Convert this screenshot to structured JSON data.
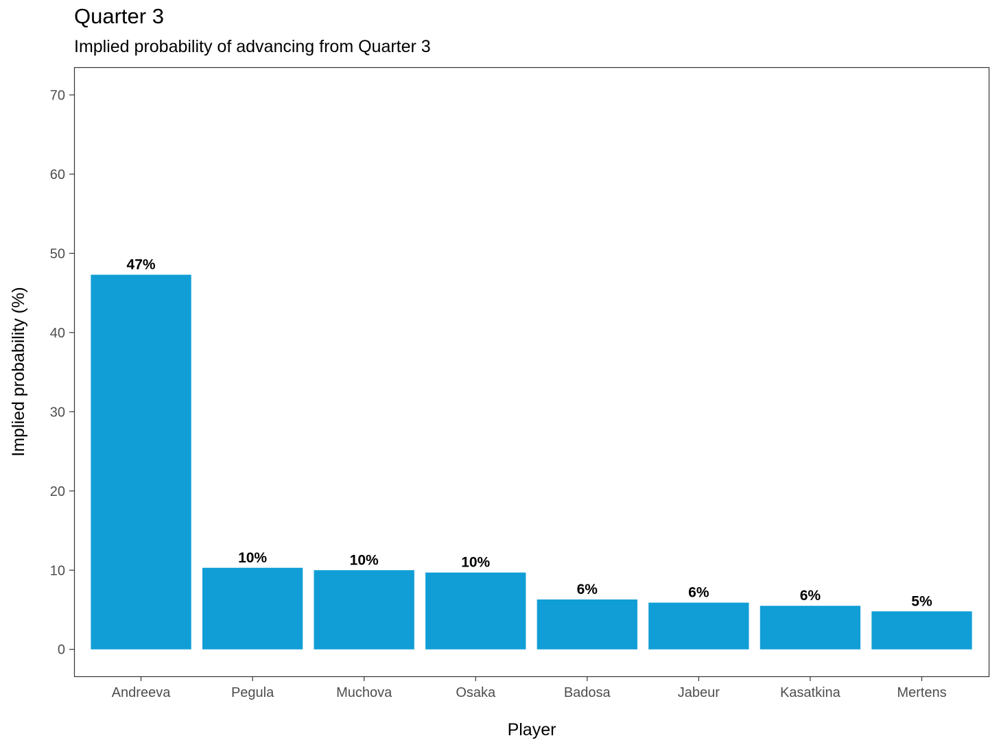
{
  "chart_data": {
    "type": "bar",
    "title": "Quarter 3",
    "subtitle": "Implied probability of advancing from Quarter 3",
    "xlabel": "Player",
    "ylabel": "Implied probability (%)",
    "categories": [
      "Andreeva",
      "Pegula",
      "Muchova",
      "Osaka",
      "Badosa",
      "Jabeur",
      "Kasatkina",
      "Mertens"
    ],
    "values": [
      47.3,
      10.3,
      10.0,
      9.7,
      6.3,
      5.9,
      5.5,
      4.8
    ],
    "data_labels": [
      "47%",
      "10%",
      "10%",
      "10%",
      "6%",
      "6%",
      "6%",
      "5%"
    ],
    "ylim": [
      -3.4,
      73.5
    ],
    "yticks": [
      0,
      10,
      20,
      30,
      40,
      50,
      60,
      70
    ],
    "bar_color": "#119ED6",
    "grid": false,
    "legend": "none"
  }
}
